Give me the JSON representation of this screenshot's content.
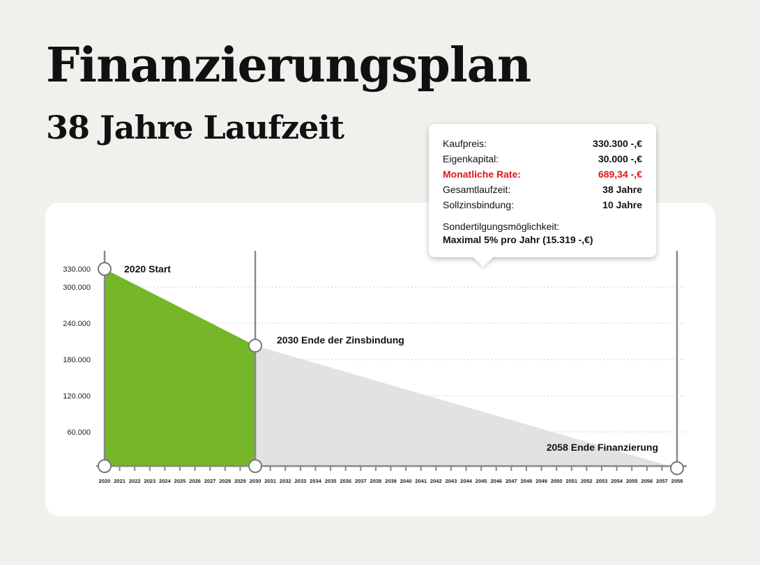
{
  "header": {
    "title": "Finanzierungsplan",
    "subtitle": "38 Jahre Laufzeit"
  },
  "info": {
    "rows": [
      {
        "label": "Kaufpreis:",
        "value": "330.300 -,€"
      },
      {
        "label": "Eigenkapital:",
        "value": "30.000 -,€"
      },
      {
        "label": "Monatliche Rate:",
        "value": "689,34 -,€",
        "highlight": true
      },
      {
        "label": "Gesamtlaufzeit:",
        "value": "38 Jahre"
      },
      {
        "label": "Sollzinsbindung:",
        "value": "10 Jahre"
      }
    ],
    "sondertilgung_label": "Sondertilgungsmöglichkeit:",
    "sondertilgung_value": "Maximal 5% pro Jahr (15.319 -,€)",
    "highlight_color": "#e3141b"
  },
  "chart_data": {
    "type": "area",
    "x": [
      2020,
      2030,
      2058
    ],
    "y": [
      330000,
      203000,
      0
    ],
    "xlim": [
      2020,
      2058
    ],
    "ylim": [
      0,
      330000
    ],
    "ytick_values": [
      330000,
      300000,
      240000,
      180000,
      120000,
      60000
    ],
    "ytick_labels": [
      "330.000",
      "300.000",
      "240.000",
      "180.000",
      "120.000",
      "60.000"
    ],
    "xtick_labels": [
      "2020",
      "2021",
      "2022",
      "2023",
      "2024",
      "2025",
      "2026",
      "2027",
      "2028",
      "2029",
      "2030",
      "2031",
      "2032",
      "2033",
      "2034",
      "2035",
      "2036",
      "2037",
      "2038",
      "2039",
      "2040",
      "2041",
      "2042",
      "2043",
      "2044",
      "2045",
      "2046",
      "2047",
      "2048",
      "2049",
      "2050",
      "2051",
      "2052",
      "2053",
      "2054",
      "2055",
      "2056",
      "2057",
      "2058"
    ],
    "grid": true,
    "segments": [
      {
        "from": 2020,
        "to": 2030,
        "color": "#76b72a"
      },
      {
        "from": 2030,
        "to": 2058,
        "color": "#e2e2e2"
      }
    ],
    "annotations": [
      {
        "x": 2020,
        "y": 330000,
        "text": "2020 Start"
      },
      {
        "x": 2030,
        "y": 203000,
        "text": "2030 Ende der Zinsbindung"
      },
      {
        "x": 2058,
        "y": 0,
        "text": "2058 Ende Finanzierung"
      }
    ]
  }
}
